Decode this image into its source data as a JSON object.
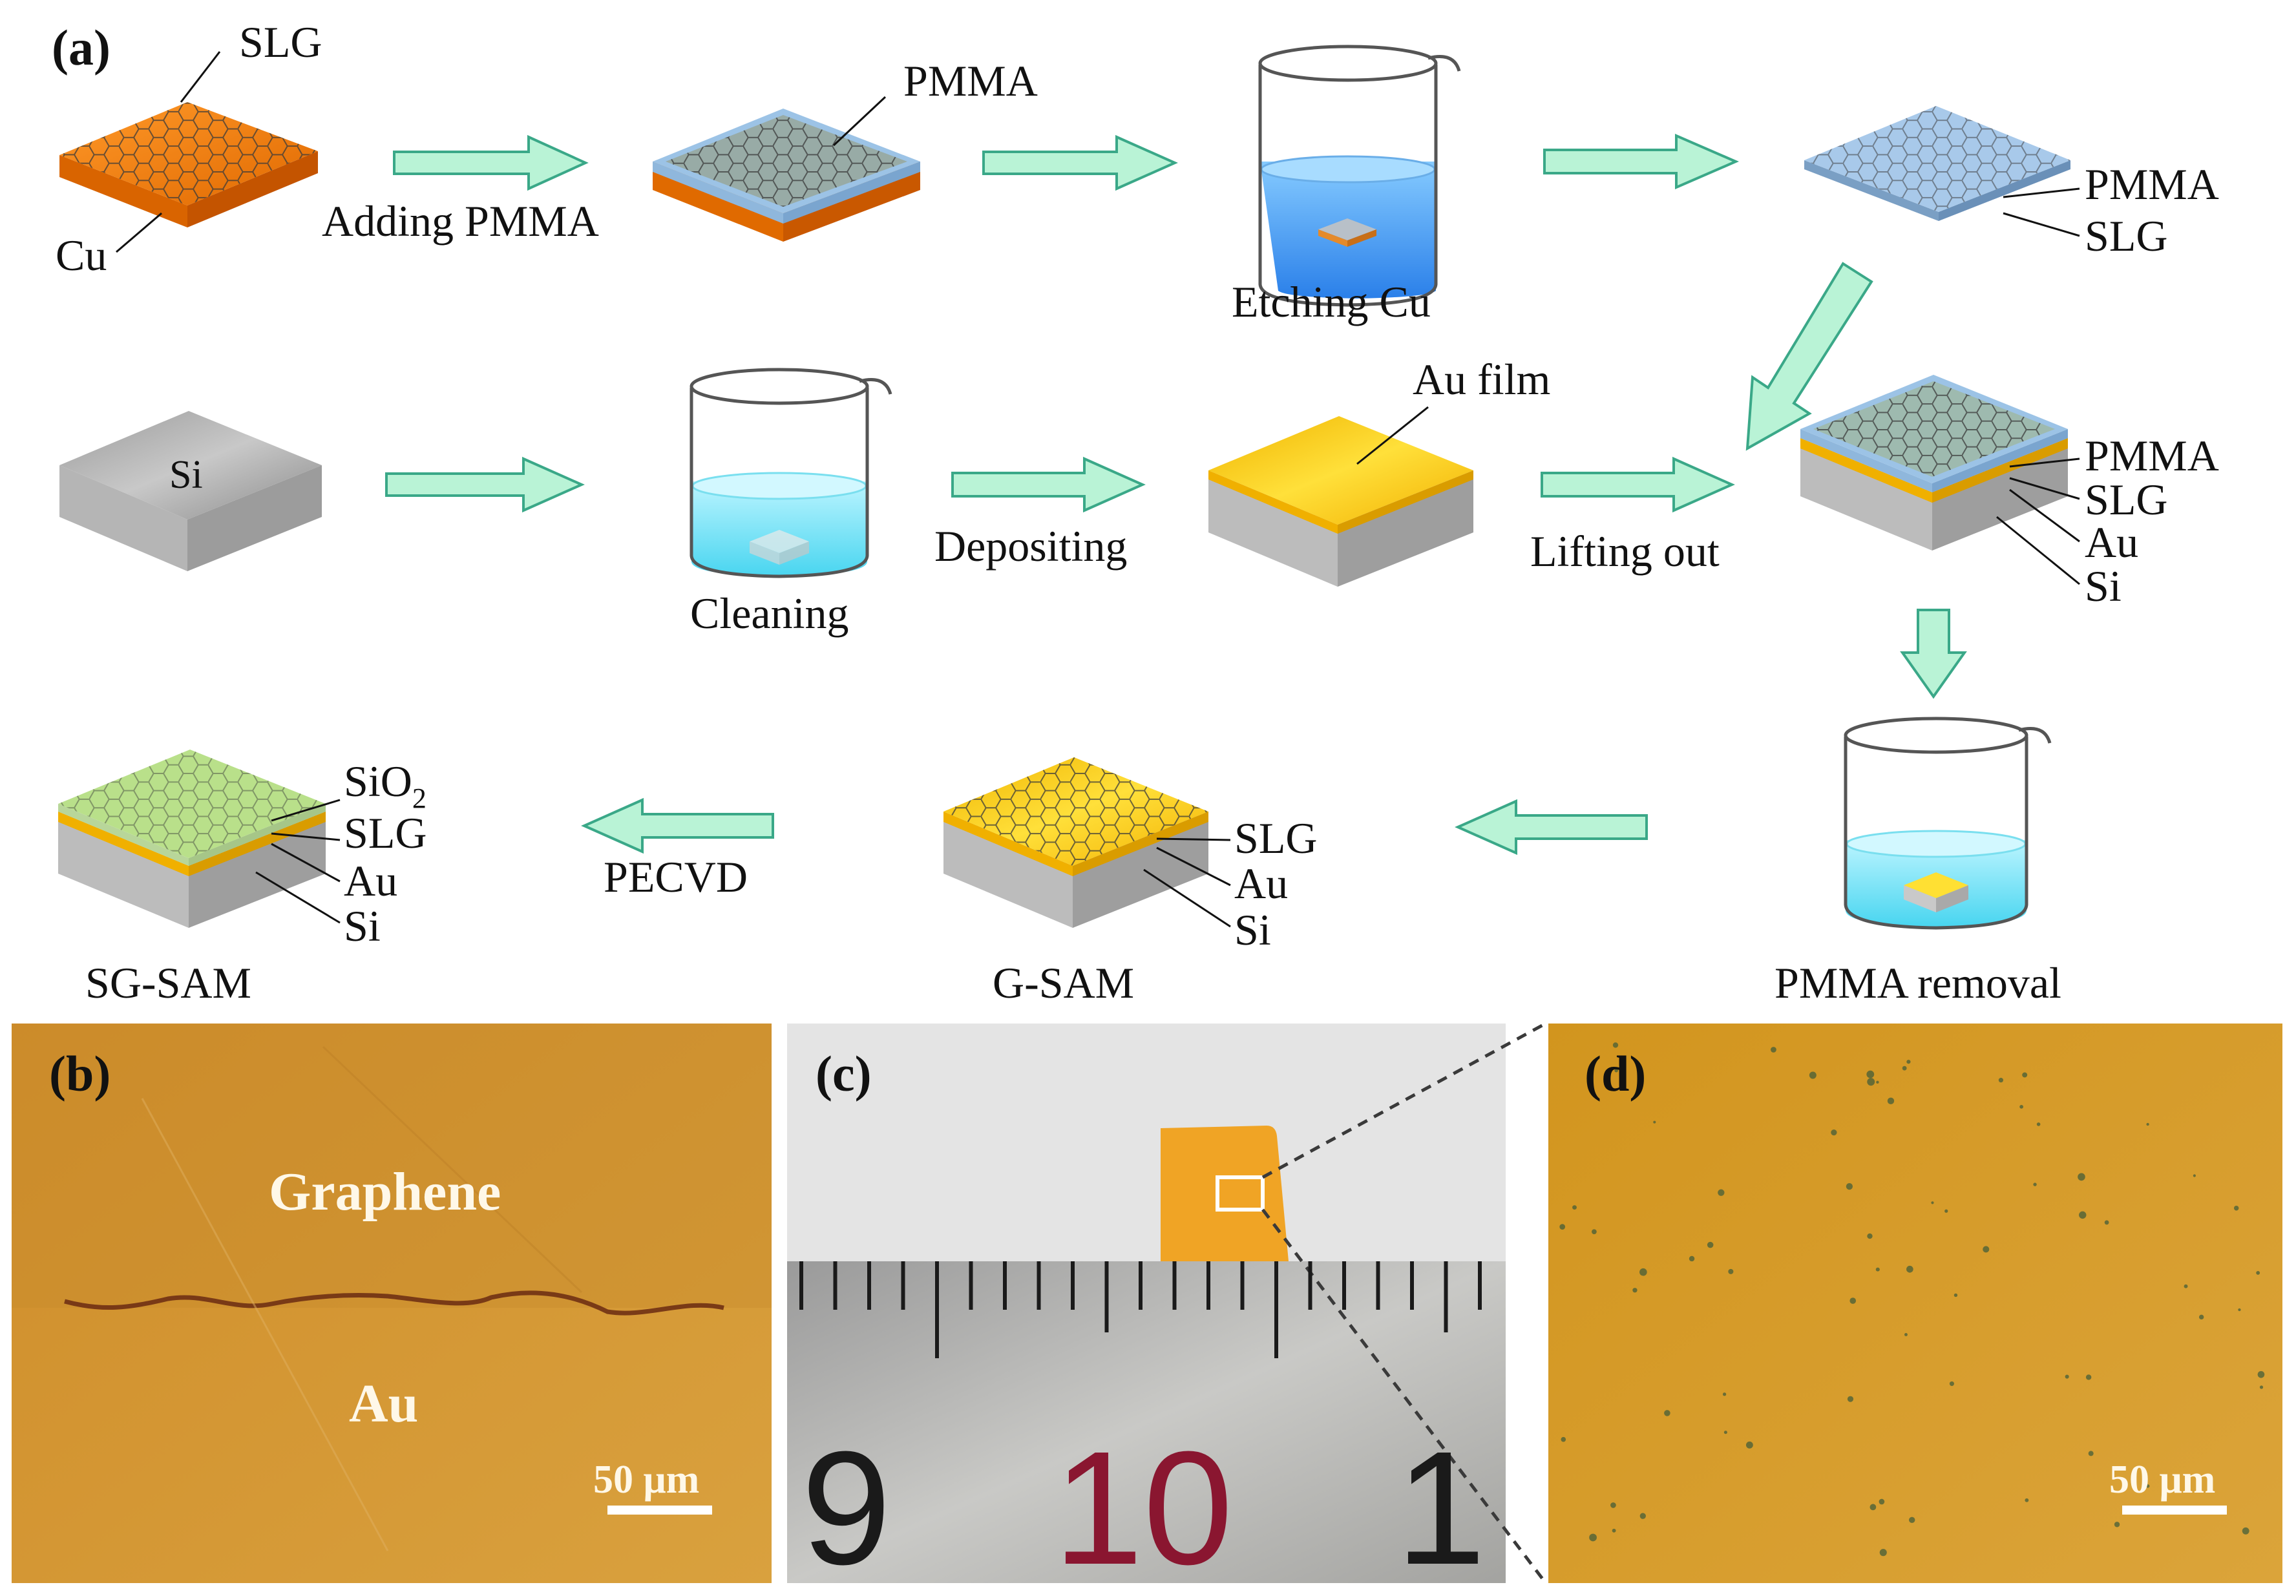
{
  "panel_a": {
    "label": "(a)",
    "row1": {
      "cu_sample": {
        "callout_top": "SLG",
        "callout_bottom": "Cu"
      },
      "step1": "Adding PMMA",
      "pmma_sample": {
        "callout": "PMMA"
      },
      "step2": "Etching Cu",
      "film": {
        "callout_top": "PMMA",
        "callout_bottom": "SLG"
      }
    },
    "row2": {
      "si_sample": {
        "label": "Si"
      },
      "step1": "Cleaning",
      "step2": "Depositing",
      "au_sample": {
        "callout": "Au film"
      },
      "step3": "Lifting out",
      "stack": {
        "layers": [
          "PMMA",
          "SLG",
          "Au",
          "Si"
        ]
      }
    },
    "row3": {
      "step_removal": "PMMA removal",
      "gsam": {
        "name": "G-SAM",
        "layers": [
          "SLG",
          "Au",
          "Si"
        ]
      },
      "step_pecvd": "PECVD",
      "sgsam": {
        "name": "SG-SAM",
        "layers": [
          "SiO",
          "2",
          "SLG",
          "Au",
          "Si"
        ]
      }
    }
  },
  "panel_b": {
    "label": "(b)",
    "region_top": "Graphene",
    "region_bottom": "Au",
    "scale_bar": "50 μm"
  },
  "panel_c": {
    "label": "(c)",
    "ruler_numbers": [
      "9",
      "10",
      "1"
    ]
  },
  "panel_d": {
    "label": "(d)",
    "scale_bar": "50 μm"
  },
  "colors": {
    "arrow_fill": "#b9f3d6",
    "arrow_stroke": "#3aa888",
    "copper": "#f07d0a",
    "gold": "#f5c400",
    "silicon": "#b8b8b8",
    "pmma": "#9cc3e6",
    "photo_bg": "#d9a13a"
  }
}
